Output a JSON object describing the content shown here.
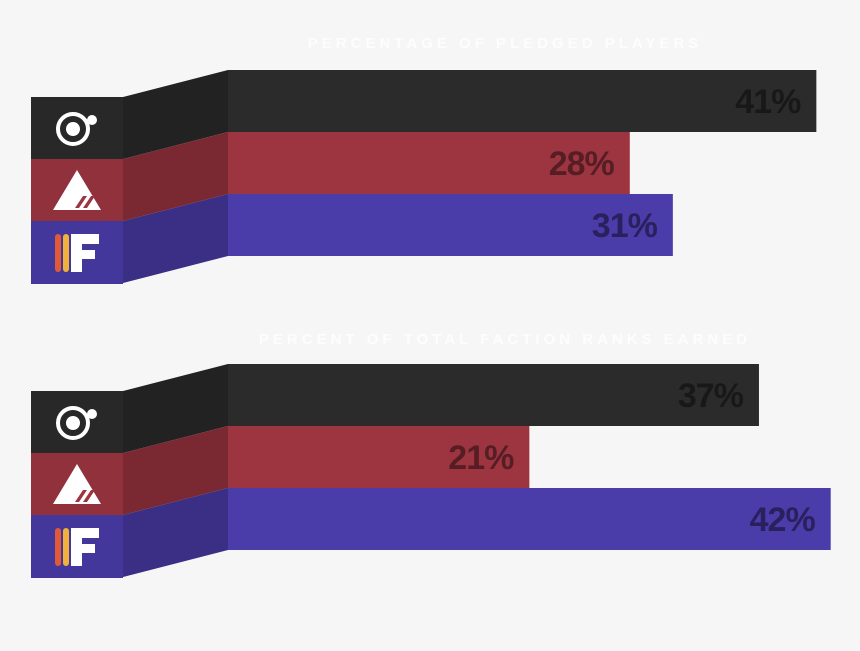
{
  "chart_data": [
    {
      "type": "bar",
      "title": "PERCENTAGE OF PLEDGED PLAYERS",
      "values": [
        41,
        28,
        31
      ],
      "value_labels": [
        "41%",
        "28%",
        "31%"
      ],
      "colors": [
        "#2b2b2b",
        "#9d3541",
        "#4a3ca9"
      ]
    },
    {
      "type": "bar",
      "title": "PERCENT OF TOTAL FACTION RANKS EARNED",
      "values": [
        37,
        21,
        42
      ],
      "value_labels": [
        "37%",
        "21%",
        "42%"
      ],
      "colors": [
        "#2b2b2b",
        "#9d3541",
        "#4a3ca9"
      ]
    }
  ]
}
